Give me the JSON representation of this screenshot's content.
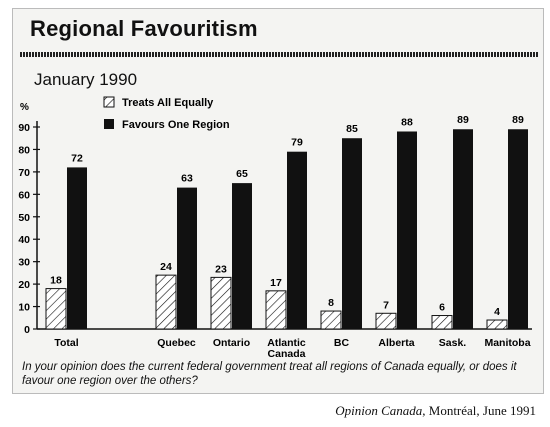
{
  "page": {
    "title": "Regional Favouritism",
    "subtitle": "January 1990",
    "question": "In your opinion does the current federal government treat all regions of Canada equally, or does it favour one region over the others?",
    "source_publication": "Opinion Canada",
    "source_rest": ", Montréal, June 1991"
  },
  "chart_data": {
    "type": "bar",
    "title": "Regional Favouritism",
    "subtitle": "January 1990",
    "ylabel": "%",
    "ylim": [
      0,
      90
    ],
    "yticks": [
      0,
      10,
      20,
      30,
      40,
      50,
      60,
      70,
      80,
      90
    ],
    "categories": [
      {
        "lines": [
          "Total"
        ]
      },
      {
        "lines": [
          "Quebec"
        ]
      },
      {
        "lines": [
          "Ontario"
        ]
      },
      {
        "lines": [
          "Atlantic",
          "Canada"
        ]
      },
      {
        "lines": [
          "BC"
        ]
      },
      {
        "lines": [
          "Alberta"
        ]
      },
      {
        "lines": [
          "Sask."
        ]
      },
      {
        "lines": [
          "Manitoba"
        ]
      }
    ],
    "series": [
      {
        "name": "Treats All Equally",
        "values": [
          18,
          24,
          23,
          17,
          8,
          7,
          6,
          4
        ],
        "fill": "hatched",
        "color": "#ffffff"
      },
      {
        "name": "Favours One Region",
        "values": [
          72,
          63,
          65,
          79,
          85,
          88,
          89,
          89
        ],
        "fill": "solid",
        "color": "#111111"
      }
    ],
    "legend_position": "top-left",
    "grid": false
  }
}
